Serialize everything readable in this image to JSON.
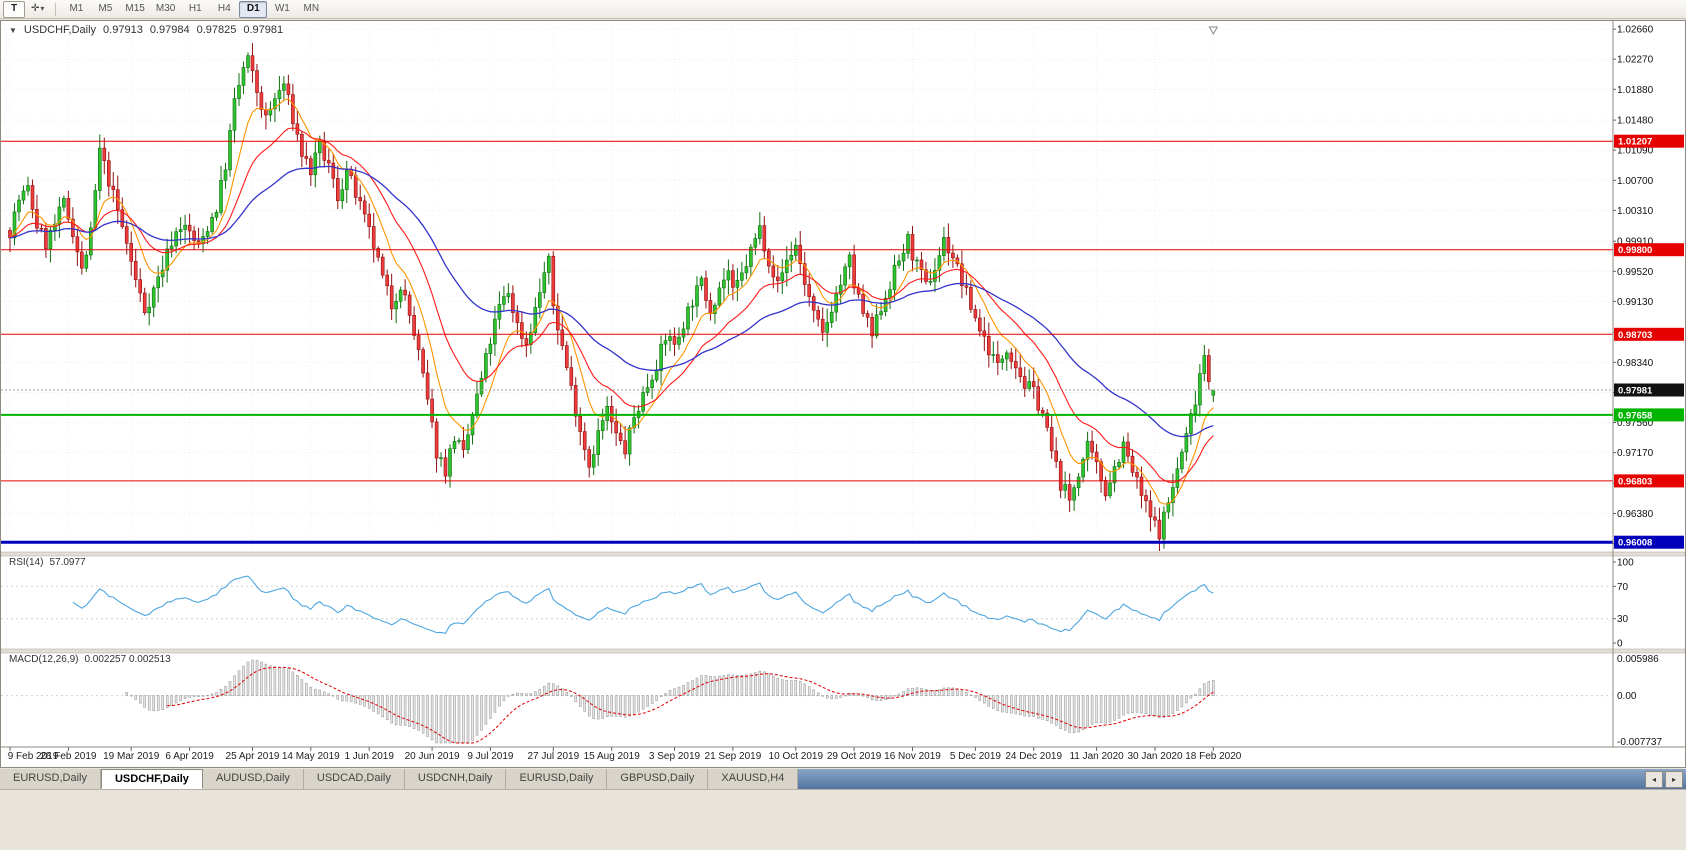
{
  "toolbar": {
    "t_button": "T",
    "cursor_icon": "✛",
    "dropdown_icon": "▾",
    "timeframes": [
      "M1",
      "M5",
      "M15",
      "M30",
      "H1",
      "H4",
      "D1",
      "W1",
      "MN"
    ],
    "active_timeframe": "D1"
  },
  "chart": {
    "collapse_icon": "▼",
    "symbol_label": "USDCHF,Daily",
    "ohlc": {
      "open": "0.97913",
      "high": "0.97984",
      "low": "0.97825",
      "close": "0.97981"
    }
  },
  "rsi": {
    "label": "RSI(14)",
    "value": "57.0977",
    "period": 14,
    "axis": [
      "100",
      "70",
      "30",
      "0"
    ],
    "levels": [
      70,
      30
    ]
  },
  "macd": {
    "label": "MACD(12,26,9)",
    "values": "0.002257 0.002513",
    "fast": 12,
    "slow": 26,
    "signal": 9,
    "axis_top": "0.005986",
    "axis_zero": "0.00",
    "axis_bottom": "-0.007737",
    "scale_top": 0.005986,
    "scale_bottom": -0.007737
  },
  "tabs": {
    "items": [
      "EURUSD,Daily",
      "USDCHF,Daily",
      "AUDUSD,Daily",
      "USDCAD,Daily",
      "USDCNH,Daily",
      "EURUSD,Daily",
      "GBPUSD,Daily",
      "XAUUSD,H4"
    ],
    "active_index": 1,
    "left_arrow": "◂",
    "right_arrow": "▸"
  },
  "chart_data": {
    "type": "candlestick",
    "symbol": "USDCHF",
    "timeframe": "Daily",
    "bars": 269,
    "y_axis": {
      "price_top": 1.027,
      "price_bottom": 0.9592,
      "ticks": [
        "1.02660",
        "1.02270",
        "1.01880",
        "1.01480",
        "1.01090",
        "1.00700",
        "1.00310",
        "0.99910",
        "0.99520",
        "0.99130",
        "0.98730",
        "0.98340",
        "0.97950",
        "0.97560",
        "0.97170",
        "0.96770",
        "0.96380",
        "0.95990"
      ]
    },
    "x_axis": {
      "ticks": [
        {
          "label": "9 Feb 2019",
          "bar": 0
        },
        {
          "label": "28 Feb 2019",
          "bar": 13
        },
        {
          "label": "19 Mar 2019",
          "bar": 27
        },
        {
          "label": "6 Apr 2019",
          "bar": 40
        },
        {
          "label": "25 Apr 2019",
          "bar": 54
        },
        {
          "label": "14 May 2019",
          "bar": 67
        },
        {
          "label": "1 Jun 2019",
          "bar": 80
        },
        {
          "label": "20 Jun 2019",
          "bar": 94
        },
        {
          "label": "9 Jul 2019",
          "bar": 107
        },
        {
          "label": "27 Jul 2019",
          "bar": 121
        },
        {
          "label": "15 Aug 2019",
          "bar": 134
        },
        {
          "label": "3 Sep 2019",
          "bar": 148
        },
        {
          "label": "21 Sep 2019",
          "bar": 161
        },
        {
          "label": "10 Oct 2019",
          "bar": 175
        },
        {
          "label": "29 Oct 2019",
          "bar": 188
        },
        {
          "label": "16 Nov 2019",
          "bar": 201
        },
        {
          "label": "5 Dec 2019",
          "bar": 215
        },
        {
          "label": "24 Dec 2019",
          "bar": 228
        },
        {
          "label": "11 Jan 2020",
          "bar": 242
        },
        {
          "label": "30 Jan 2020",
          "bar": 255
        },
        {
          "label": "18 Feb 2020",
          "bar": 268
        }
      ]
    },
    "anchors": [
      [
        0,
        1.0005
      ],
      [
        2,
        1.0045
      ],
      [
        4,
        1.0058
      ],
      [
        6,
        1.0012
      ],
      [
        8,
        0.9988
      ],
      [
        10,
        1.0012
      ],
      [
        12,
        1.004
      ],
      [
        14,
        1.0005
      ],
      [
        16,
        0.9952
      ],
      [
        18,
        1.0
      ],
      [
        20,
        1.0108
      ],
      [
        22,
        1.007
      ],
      [
        24,
        1.003
      ],
      [
        26,
        0.9988
      ],
      [
        28,
        0.994
      ],
      [
        30,
        0.9902
      ],
      [
        32,
        0.9928
      ],
      [
        34,
        0.9958
      ],
      [
        36,
        0.9992
      ],
      [
        38,
        1.0012
      ],
      [
        40,
        1.0002
      ],
      [
        42,
        0.9982
      ],
      [
        44,
        1.001
      ],
      [
        46,
        1.0035
      ],
      [
        48,
        1.009
      ],
      [
        50,
        1.017
      ],
      [
        52,
        1.0215
      ],
      [
        53,
        1.0226
      ],
      [
        55,
        1.0185
      ],
      [
        57,
        1.0148
      ],
      [
        59,
        1.0175
      ],
      [
        61,
        1.0195
      ],
      [
        63,
        1.015
      ],
      [
        65,
        1.0105
      ],
      [
        67,
        1.0082
      ],
      [
        69,
        1.0112
      ],
      [
        71,
        1.0088
      ],
      [
        73,
        1.0048
      ],
      [
        75,
        1.0082
      ],
      [
        77,
        1.0052
      ],
      [
        79,
        1.0018
      ],
      [
        81,
        0.9985
      ],
      [
        83,
        0.9942
      ],
      [
        85,
        0.9908
      ],
      [
        87,
        0.9936
      ],
      [
        89,
        0.9895
      ],
      [
        91,
        0.9845
      ],
      [
        93,
        0.9782
      ],
      [
        95,
        0.9718
      ],
      [
        97,
        0.9695
      ],
      [
        99,
        0.9738
      ],
      [
        101,
        0.9712
      ],
      [
        103,
        0.9765
      ],
      [
        105,
        0.9812
      ],
      [
        107,
        0.9862
      ],
      [
        109,
        0.9905
      ],
      [
        111,
        0.9925
      ],
      [
        113,
        0.9882
      ],
      [
        115,
        0.9858
      ],
      [
        117,
        0.9902
      ],
      [
        119,
        0.995
      ],
      [
        120,
        0.9962
      ],
      [
        121,
        0.9908
      ],
      [
        123,
        0.9855
      ],
      [
        125,
        0.98
      ],
      [
        127,
        0.9748
      ],
      [
        129,
        0.9702
      ],
      [
        131,
        0.9742
      ],
      [
        133,
        0.9772
      ],
      [
        135,
        0.9738
      ],
      [
        137,
        0.972
      ],
      [
        139,
        0.9762
      ],
      [
        141,
        0.9792
      ],
      [
        143,
        0.9818
      ],
      [
        145,
        0.9848
      ],
      [
        147,
        0.9872
      ],
      [
        148,
        0.9852
      ],
      [
        150,
        0.9886
      ],
      [
        152,
        0.9915
      ],
      [
        154,
        0.9936
      ],
      [
        156,
        0.9904
      ],
      [
        158,
        0.9932
      ],
      [
        160,
        0.9952
      ],
      [
        161,
        0.9922
      ],
      [
        163,
        0.9946
      ],
      [
        165,
        0.9978
      ],
      [
        167,
        1.0008
      ],
      [
        169,
        0.9968
      ],
      [
        171,
        0.9934
      ],
      [
        173,
        0.9966
      ],
      [
        175,
        0.9986
      ],
      [
        177,
        0.9938
      ],
      [
        179,
        0.9895
      ],
      [
        181,
        0.9868
      ],
      [
        183,
        0.9906
      ],
      [
        185,
        0.9936
      ],
      [
        187,
        0.9966
      ],
      [
        188,
        0.9934
      ],
      [
        190,
        0.9898
      ],
      [
        192,
        0.9868
      ],
      [
        194,
        0.9906
      ],
      [
        196,
        0.9936
      ],
      [
        198,
        0.9966
      ],
      [
        200,
        0.9992
      ],
      [
        202,
        0.9958
      ],
      [
        204,
        0.9932
      ],
      [
        206,
        0.9956
      ],
      [
        208,
        0.9992
      ],
      [
        210,
        0.9972
      ],
      [
        212,
        0.9938
      ],
      [
        214,
        0.9906
      ],
      [
        216,
        0.9878
      ],
      [
        218,
        0.9852
      ],
      [
        220,
        0.9828
      ],
      [
        222,
        0.9855
      ],
      [
        224,
        0.9832
      ],
      [
        226,
        0.9805
      ],
      [
        228,
        0.9795
      ],
      [
        230,
        0.9768
      ],
      [
        232,
        0.9718
      ],
      [
        234,
        0.9678
      ],
      [
        236,
        0.9655
      ],
      [
        238,
        0.9692
      ],
      [
        240,
        0.9722
      ],
      [
        242,
        0.9698
      ],
      [
        244,
        0.9668
      ],
      [
        246,
        0.9698
      ],
      [
        248,
        0.9726
      ],
      [
        250,
        0.9692
      ],
      [
        252,
        0.9662
      ],
      [
        254,
        0.9632
      ],
      [
        256,
        0.9615
      ],
      [
        258,
        0.9652
      ],
      [
        260,
        0.9695
      ],
      [
        262,
        0.9738
      ],
      [
        264,
        0.9788
      ],
      [
        265,
        0.9822
      ],
      [
        266,
        0.9845
      ],
      [
        267,
        0.9815
      ],
      [
        268,
        0.97981
      ]
    ],
    "last_bar": {
      "open": 0.97913,
      "high": 0.97984,
      "low": 0.97825,
      "close": 0.97981
    },
    "h_lines": [
      {
        "price": 1.01207,
        "label": "1.01207",
        "color": "#e60000",
        "width": 1
      },
      {
        "price": 0.998,
        "label": "0.99800",
        "color": "#e60000",
        "width": 1
      },
      {
        "price": 0.98703,
        "label": "0.98703",
        "color": "#e60000",
        "width": 1
      },
      {
        "price": 0.96803,
        "label": "0.96803",
        "color": "#e60000",
        "width": 1
      },
      {
        "price": 0.97658,
        "label": "0.97658",
        "color": "#00b400",
        "width": 2
      },
      {
        "price": 0.96008,
        "label": "0.96008",
        "color": "#0000bb",
        "width": 3
      }
    ],
    "current_price": {
      "price": 0.97981,
      "label": "0.97981",
      "color": "#111111"
    },
    "colors": {
      "up": "#2fc42f",
      "up_border": "#0f6e0f",
      "down": "#ee3b3b",
      "down_border": "#8f1010",
      "ma_fast": "#ff9500",
      "ma_mid": "#ff1a1a",
      "ma_slow": "#3333cc",
      "rsi": "#4da6e0",
      "macd_hist_fill": "#e6e6e6",
      "macd_hist_stroke": "#909090",
      "macd_signal": "#e00000",
      "grid": "#ededed"
    }
  }
}
